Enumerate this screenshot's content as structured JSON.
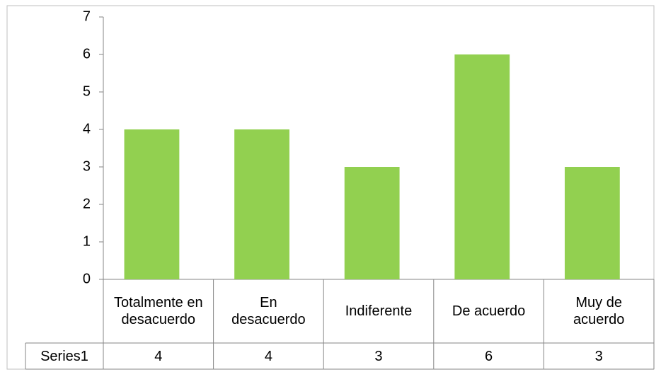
{
  "chart_data": {
    "type": "bar",
    "categories": [
      "Totalmente en desacuerdo",
      "En desacuerdo",
      "Indiferente",
      "De acuerdo",
      "Muy de acuerdo"
    ],
    "series": [
      {
        "name": "Series1",
        "color": "#92d050",
        "values": [
          4,
          4,
          3,
          6,
          3
        ]
      }
    ],
    "ylim": [
      0,
      7
    ],
    "yticks": [
      0,
      1,
      2,
      3,
      4,
      5,
      6,
      7
    ],
    "grid": false,
    "data_table": true
  }
}
